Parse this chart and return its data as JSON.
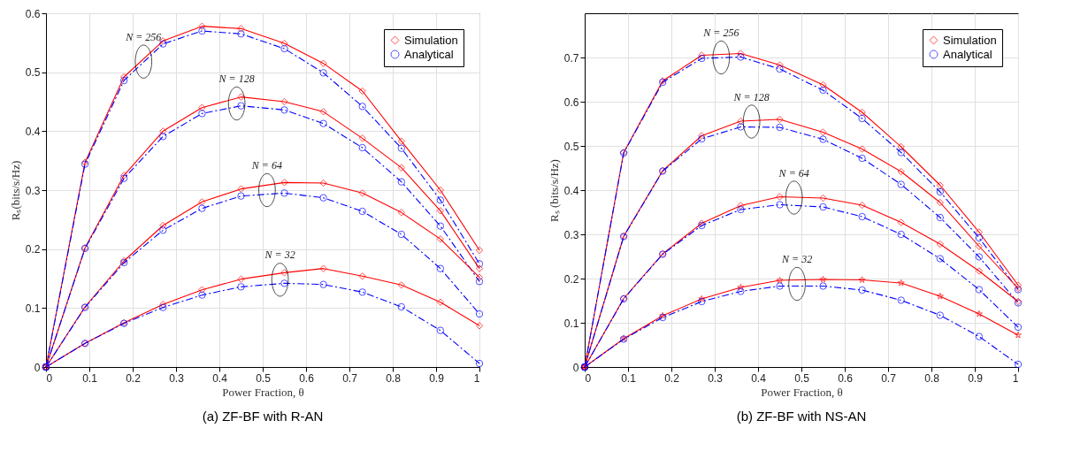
{
  "chart_data": [
    {
      "type": "line",
      "title": "(a) ZF-BF with R-AN",
      "xlabel": "Power Fraction, θ",
      "ylabel": "Rₛ(bits/s/Hz)",
      "x": [
        0,
        0.09,
        0.18,
        0.27,
        0.36,
        0.45,
        0.55,
        0.64,
        0.73,
        0.82,
        0.91,
        1
      ],
      "xlim": [
        0,
        1
      ],
      "xticks": [
        0,
        0.1,
        0.2,
        0.3,
        0.4,
        0.5,
        0.6,
        0.7,
        0.8,
        0.9,
        1
      ],
      "ylim": [
        0,
        0.6
      ],
      "yticks": [
        0,
        0.1,
        0.2,
        0.3,
        0.4,
        0.5,
        0.6
      ],
      "grid": true,
      "legend": "top right",
      "series": [
        {
          "name": "Simulation",
          "color": "#ff0000",
          "marker": "diamond",
          "line_style": "solid",
          "values": [
            0,
            0.347,
            0.492,
            0.553,
            0.578,
            0.574,
            0.549,
            0.515,
            0.468,
            0.383,
            0.3,
            0.198
          ]
        },
        {
          "name": "Analytical",
          "color": "#0000ff",
          "marker": "circle",
          "line_style": "dashed",
          "values": [
            0,
            0.344,
            0.486,
            0.548,
            0.57,
            0.565,
            0.54,
            0.499,
            0.442,
            0.371,
            0.283,
            0.175
          ]
        },
        {
          "color": "#ff0000",
          "marker": "diamond",
          "line_style": "solid",
          "values": [
            0,
            0.202,
            0.325,
            0.4,
            0.44,
            0.458,
            0.45,
            0.433,
            0.388,
            0.338,
            0.265,
            0.167
          ]
        },
        {
          "color": "#0000ff",
          "marker": "circle",
          "line_style": "dashed",
          "values": [
            0,
            0.201,
            0.32,
            0.391,
            0.43,
            0.443,
            0.436,
            0.413,
            0.372,
            0.314,
            0.239,
            0.145
          ]
        },
        {
          "color": "#ff0000",
          "marker": "diamond",
          "line_style": "solid",
          "values": [
            0,
            0.102,
            0.18,
            0.24,
            0.28,
            0.302,
            0.313,
            0.312,
            0.295,
            0.262,
            0.217,
            0.152
          ]
        },
        {
          "color": "#0000ff",
          "marker": "circle",
          "line_style": "dashed",
          "values": [
            0,
            0.101,
            0.177,
            0.232,
            0.269,
            0.29,
            0.295,
            0.287,
            0.264,
            0.225,
            0.167,
            0.09
          ]
        },
        {
          "color": "#ff0000",
          "marker": "diamond",
          "line_style": "solid",
          "values": [
            0,
            0.04,
            0.075,
            0.106,
            0.131,
            0.149,
            0.16,
            0.167,
            0.154,
            0.139,
            0.11,
            0.07
          ]
        },
        {
          "color": "#0000ff",
          "marker": "circle",
          "line_style": "dashed",
          "values": [
            0,
            0.04,
            0.074,
            0.101,
            0.122,
            0.136,
            0.142,
            0.14,
            0.127,
            0.102,
            0.062,
            0.006
          ]
        }
      ],
      "annotations": [
        {
          "text": "N = 256",
          "x": 0.225,
          "y": 0.518
        },
        {
          "text": "N = 128",
          "x": 0.44,
          "y": 0.447
        },
        {
          "text": "N = 64",
          "x": 0.51,
          "y": 0.3
        },
        {
          "text": "N = 32",
          "x": 0.54,
          "y": 0.148
        }
      ]
    },
    {
      "type": "line",
      "title": "(b) ZF-BF with NS-AN",
      "xlabel": "Power Fraction, θ",
      "ylabel": "Rₛ (bits/s/Hz)",
      "x": [
        0,
        0.09,
        0.18,
        0.27,
        0.36,
        0.45,
        0.55,
        0.64,
        0.73,
        0.82,
        0.91,
        1
      ],
      "xlim": [
        0,
        1
      ],
      "xticks": [
        0,
        0.1,
        0.2,
        0.3,
        0.4,
        0.5,
        0.6,
        0.7,
        0.8,
        0.9,
        1
      ],
      "ylim": [
        0,
        0.8
      ],
      "yticks": [
        0,
        0.1,
        0.2,
        0.3,
        0.4,
        0.5,
        0.6,
        0.7
      ],
      "grid": true,
      "legend": "top right",
      "series": [
        {
          "name": "Simulation",
          "color": "#ff0000",
          "marker": "diamond",
          "line_style": "solid",
          "values": [
            0,
            0.485,
            0.647,
            0.705,
            0.709,
            0.683,
            0.638,
            0.576,
            0.498,
            0.411,
            0.305,
            0.185
          ]
        },
        {
          "name": "Analytical",
          "color": "#0000ff",
          "marker": "circle",
          "line_style": "dashed",
          "values": [
            0,
            0.484,
            0.644,
            0.698,
            0.701,
            0.674,
            0.626,
            0.562,
            0.485,
            0.396,
            0.292,
            0.175
          ]
        },
        {
          "color": "#ff0000",
          "marker": "diamond",
          "line_style": "solid",
          "values": [
            0,
            0.296,
            0.444,
            0.523,
            0.556,
            0.56,
            0.531,
            0.493,
            0.442,
            0.372,
            0.273,
            0.178
          ]
        },
        {
          "color": "#0000ff",
          "marker": "circle",
          "line_style": "dashed",
          "values": [
            0,
            0.295,
            0.443,
            0.516,
            0.543,
            0.542,
            0.515,
            0.472,
            0.413,
            0.338,
            0.249,
            0.145
          ]
        },
        {
          "color": "#ff0000",
          "marker": "diamond",
          "line_style": "solid",
          "values": [
            0,
            0.155,
            0.256,
            0.325,
            0.365,
            0.385,
            0.382,
            0.366,
            0.327,
            0.278,
            0.217,
            0.148
          ]
        },
        {
          "color": "#0000ff",
          "marker": "circle",
          "line_style": "dashed",
          "values": [
            0,
            0.154,
            0.255,
            0.32,
            0.356,
            0.367,
            0.362,
            0.34,
            0.3,
            0.245,
            0.175,
            0.09
          ]
        },
        {
          "color": "#ff0000",
          "marker": "star",
          "line_style": "solid",
          "values": [
            0,
            0.064,
            0.116,
            0.154,
            0.18,
            0.196,
            0.198,
            0.197,
            0.19,
            0.16,
            0.12,
            0.072
          ]
        },
        {
          "color": "#0000ff",
          "marker": "circle",
          "line_style": "dashed",
          "values": [
            0,
            0.063,
            0.112,
            0.148,
            0.171,
            0.183,
            0.183,
            0.174,
            0.151,
            0.117,
            0.069,
            0.006
          ]
        }
      ],
      "annotations": [
        {
          "text": "N = 256",
          "x": 0.315,
          "y": 0.7
        },
        {
          "text": "N = 128",
          "x": 0.385,
          "y": 0.555
        },
        {
          "text": "N = 64",
          "x": 0.483,
          "y": 0.383
        },
        {
          "text": "N = 32",
          "x": 0.49,
          "y": 0.188
        }
      ]
    }
  ]
}
